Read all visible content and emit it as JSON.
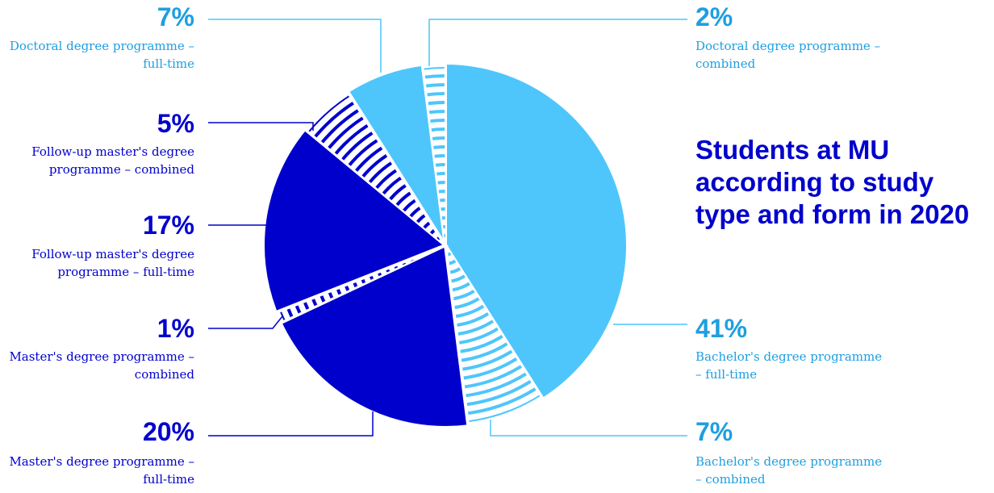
{
  "colors": {
    "light": "#4fc6fb",
    "dark": "#0000cc",
    "light_text": "#1e9fe0",
    "dark_text": "#0000cc"
  },
  "chart_data": {
    "type": "pie",
    "title": "Students at MU according to study type and form in 2020",
    "slices": [
      {
        "percent": "41%",
        "value": 41,
        "label": "Bachelor's degree programme – full-time",
        "fill": "solid",
        "color": "#4fc6fb"
      },
      {
        "percent": "7%",
        "value": 7,
        "label": "Bachelor's degree programme – combined",
        "fill": "striped",
        "color": "#4fc6fb"
      },
      {
        "percent": "20%",
        "value": 20,
        "label": "Master's degree programme – full-time",
        "fill": "solid",
        "color": "#0000cc"
      },
      {
        "percent": "1%",
        "value": 1,
        "label": "Master's degree programme – combined",
        "fill": "striped",
        "color": "#0000cc"
      },
      {
        "percent": "17%",
        "value": 17,
        "label": "Follow-up master's degree programme – full-time",
        "fill": "solid",
        "color": "#0000cc"
      },
      {
        "percent": "5%",
        "value": 5,
        "label": "Follow-up master's degree programme – combined",
        "fill": "striped",
        "color": "#0000cc"
      },
      {
        "percent": "7%",
        "value": 7,
        "label": "Doctoral degree programme – full-time",
        "fill": "solid",
        "color": "#4fc6fb"
      },
      {
        "percent": "2%",
        "value": 2,
        "label": "Doctoral degree programme – combined",
        "fill": "striped",
        "color": "#4fc6fb"
      }
    ],
    "legend": "none"
  }
}
